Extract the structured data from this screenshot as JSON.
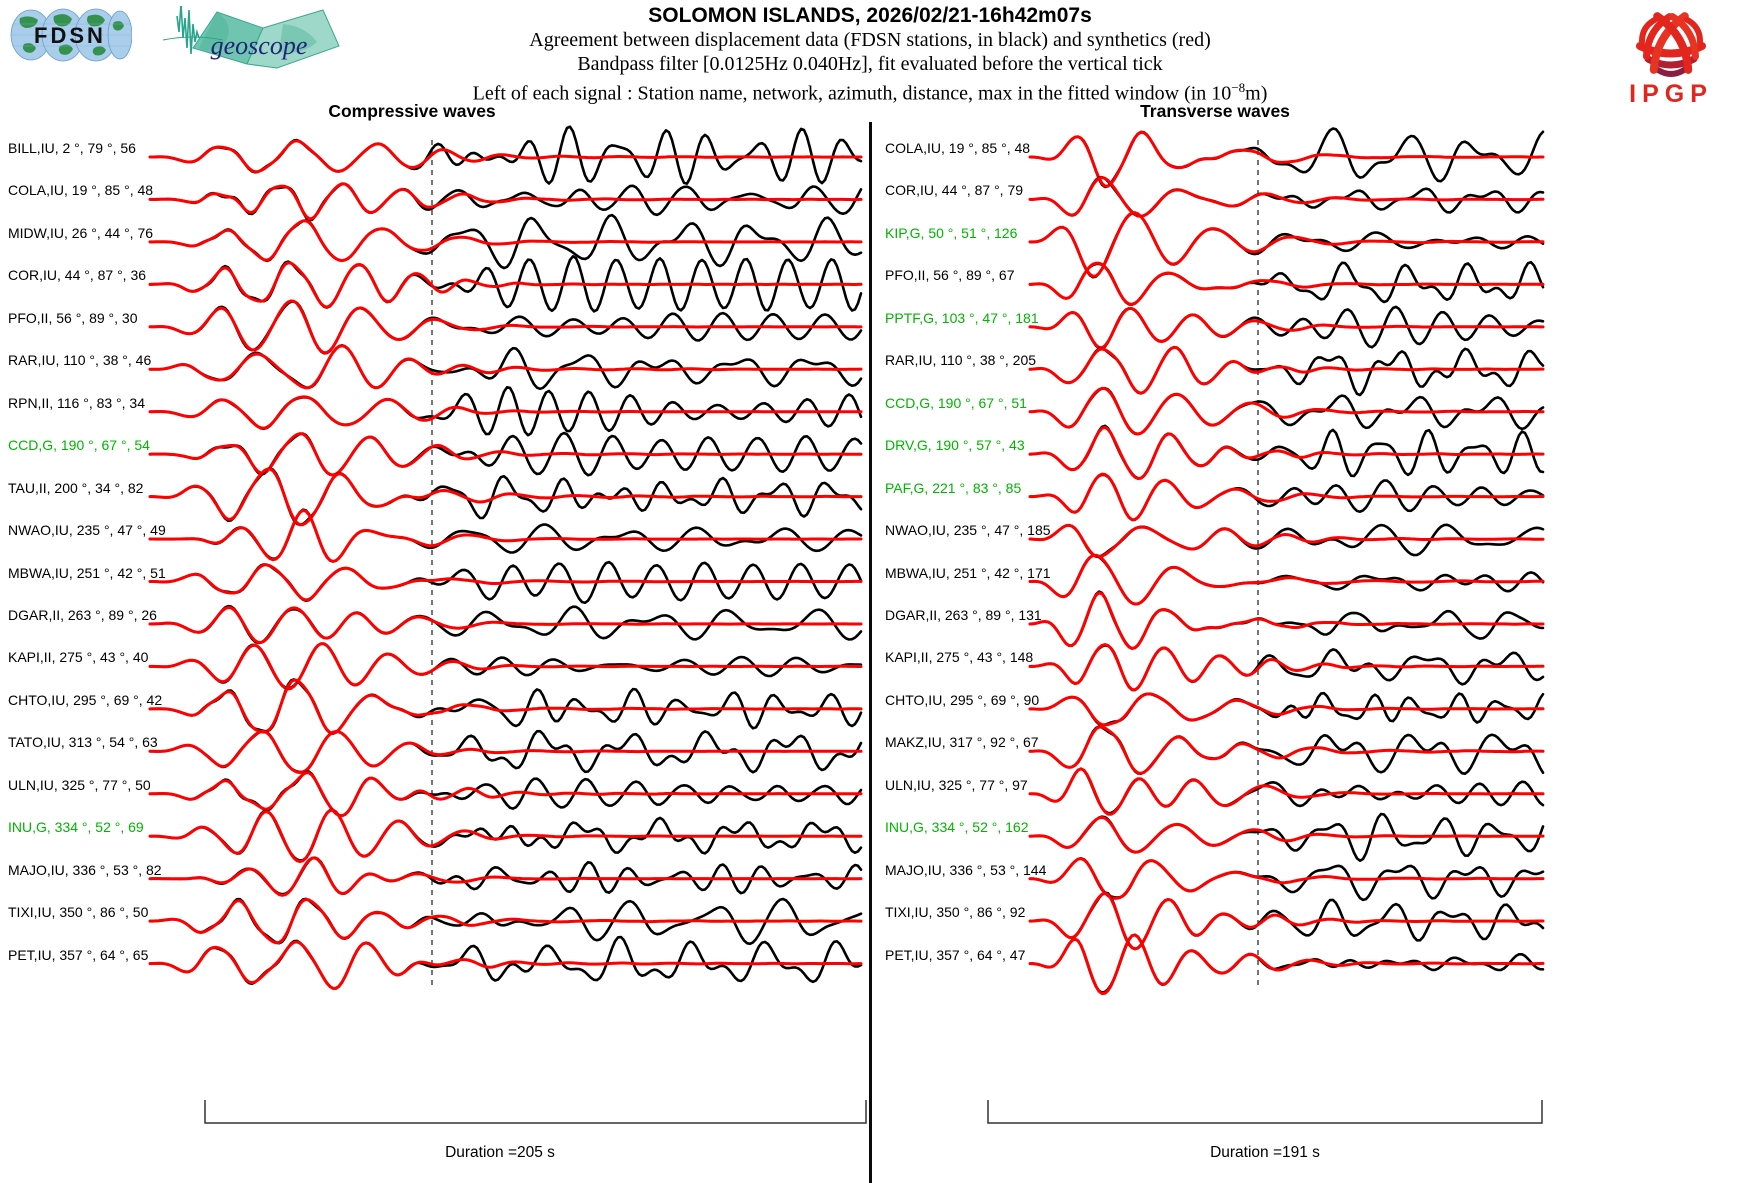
{
  "header": {
    "title": "SOLOMON ISLANDS, 2026/02/21-16h42m07s",
    "subtitle1": "Agreement between displacement data (FDSN stations, in black) and synthetics (red)",
    "subtitle2": "Bandpass filter [0.0125Hz 0.040Hz], fit evaluated before the vertical tick",
    "subtitle3_prefix": "Left of each signal : Station name, network, azimuth, distance, max in the fitted window (in 10",
    "subtitle3_sup": "−8",
    "subtitle3_suffix": "m)",
    "logos": {
      "fdsn": "FDSN",
      "geoscope": "geoscope",
      "ipgp": "IPGP"
    }
  },
  "colors": {
    "trace_data": "#000000",
    "trace_synthetic": "#ff0000",
    "green_station": "#00b400",
    "divider": "#0a0a0a"
  },
  "chart_data": {
    "type": "line",
    "description": "Seismogram comparison figure: observed displacement waveforms (black) overlaid with synthetic waveforms (red) for compressive (P) and transverse (S) waves. Each row label gives station, network, azimuth (deg), distance (deg), and max amplitude in the fitted window (1e-8 m). A dashed vertical tick marks the end of the fit window.",
    "waveforms_procedural": true,
    "panels": [
      {
        "title": "Compressive waves",
        "duration_label": "Duration =205 s",
        "duration_s": 205,
        "stations": [
          {
            "station": "BILL",
            "network": "IU",
            "azimuth_deg": 2,
            "distance_deg": 79,
            "max_1e8m": 56,
            "green": false
          },
          {
            "station": "COLA",
            "network": "IU",
            "azimuth_deg": 19,
            "distance_deg": 85,
            "max_1e8m": 48,
            "green": false
          },
          {
            "station": "MIDW",
            "network": "IU",
            "azimuth_deg": 26,
            "distance_deg": 44,
            "max_1e8m": 76,
            "green": false
          },
          {
            "station": "COR",
            "network": "IU",
            "azimuth_deg": 44,
            "distance_deg": 87,
            "max_1e8m": 36,
            "green": false
          },
          {
            "station": "PFO",
            "network": "II",
            "azimuth_deg": 56,
            "distance_deg": 89,
            "max_1e8m": 30,
            "green": false
          },
          {
            "station": "RAR",
            "network": "IU",
            "azimuth_deg": 110,
            "distance_deg": 38,
            "max_1e8m": 46,
            "green": false
          },
          {
            "station": "RPN",
            "network": "II",
            "azimuth_deg": 116,
            "distance_deg": 83,
            "max_1e8m": 34,
            "green": false
          },
          {
            "station": "CCD",
            "network": "G",
            "azimuth_deg": 190,
            "distance_deg": 67,
            "max_1e8m": 54,
            "green": true
          },
          {
            "station": "TAU",
            "network": "II",
            "azimuth_deg": 200,
            "distance_deg": 34,
            "max_1e8m": 82,
            "green": false
          },
          {
            "station": "NWAO",
            "network": "IU",
            "azimuth_deg": 235,
            "distance_deg": 47,
            "max_1e8m": 49,
            "green": false
          },
          {
            "station": "MBWA",
            "network": "IU",
            "azimuth_deg": 251,
            "distance_deg": 42,
            "max_1e8m": 51,
            "green": false
          },
          {
            "station": "DGAR",
            "network": "II",
            "azimuth_deg": 263,
            "distance_deg": 89,
            "max_1e8m": 26,
            "green": false
          },
          {
            "station": "KAPI",
            "network": "II",
            "azimuth_deg": 275,
            "distance_deg": 43,
            "max_1e8m": 40,
            "green": false
          },
          {
            "station": "CHTO",
            "network": "IU",
            "azimuth_deg": 295,
            "distance_deg": 69,
            "max_1e8m": 42,
            "green": false
          },
          {
            "station": "TATO",
            "network": "IU",
            "azimuth_deg": 313,
            "distance_deg": 54,
            "max_1e8m": 63,
            "green": false
          },
          {
            "station": "ULN",
            "network": "IU",
            "azimuth_deg": 325,
            "distance_deg": 77,
            "max_1e8m": 50,
            "green": false
          },
          {
            "station": "INU",
            "network": "G",
            "azimuth_deg": 334,
            "distance_deg": 52,
            "max_1e8m": 69,
            "green": true
          },
          {
            "station": "MAJO",
            "network": "IU",
            "azimuth_deg": 336,
            "distance_deg": 53,
            "max_1e8m": 82,
            "green": false
          },
          {
            "station": "TIXI",
            "network": "IU",
            "azimuth_deg": 350,
            "distance_deg": 86,
            "max_1e8m": 50,
            "green": false
          },
          {
            "station": "PET",
            "network": "IU",
            "azimuth_deg": 357,
            "distance_deg": 64,
            "max_1e8m": 65,
            "green": false
          }
        ]
      },
      {
        "title": "Transverse waves",
        "duration_label": "Duration =191 s",
        "duration_s": 191,
        "stations": [
          {
            "station": "COLA",
            "network": "IU",
            "azimuth_deg": 19,
            "distance_deg": 85,
            "max_1e8m": 48,
            "green": false
          },
          {
            "station": "COR",
            "network": "IU",
            "azimuth_deg": 44,
            "distance_deg": 87,
            "max_1e8m": 79,
            "green": false
          },
          {
            "station": "KIP",
            "network": "G",
            "azimuth_deg": 50,
            "distance_deg": 51,
            "max_1e8m": 126,
            "green": true
          },
          {
            "station": "PFO",
            "network": "II",
            "azimuth_deg": 56,
            "distance_deg": 89,
            "max_1e8m": 67,
            "green": false
          },
          {
            "station": "PPTF",
            "network": "G",
            "azimuth_deg": 103,
            "distance_deg": 47,
            "max_1e8m": 181,
            "green": true
          },
          {
            "station": "RAR",
            "network": "IU",
            "azimuth_deg": 110,
            "distance_deg": 38,
            "max_1e8m": 205,
            "green": false
          },
          {
            "station": "CCD",
            "network": "G",
            "azimuth_deg": 190,
            "distance_deg": 67,
            "max_1e8m": 51,
            "green": true
          },
          {
            "station": "DRV",
            "network": "G",
            "azimuth_deg": 190,
            "distance_deg": 57,
            "max_1e8m": 43,
            "green": true
          },
          {
            "station": "PAF",
            "network": "G",
            "azimuth_deg": 221,
            "distance_deg": 83,
            "max_1e8m": 85,
            "green": true
          },
          {
            "station": "NWAO",
            "network": "IU",
            "azimuth_deg": 235,
            "distance_deg": 47,
            "max_1e8m": 185,
            "green": false
          },
          {
            "station": "MBWA",
            "network": "IU",
            "azimuth_deg": 251,
            "distance_deg": 42,
            "max_1e8m": 171,
            "green": false
          },
          {
            "station": "DGAR",
            "network": "II",
            "azimuth_deg": 263,
            "distance_deg": 89,
            "max_1e8m": 131,
            "green": false
          },
          {
            "station": "KAPI",
            "network": "II",
            "azimuth_deg": 275,
            "distance_deg": 43,
            "max_1e8m": 148,
            "green": false
          },
          {
            "station": "CHTO",
            "network": "IU",
            "azimuth_deg": 295,
            "distance_deg": 69,
            "max_1e8m": 90,
            "green": false
          },
          {
            "station": "MAKZ",
            "network": "IU",
            "azimuth_deg": 317,
            "distance_deg": 92,
            "max_1e8m": 67,
            "green": false
          },
          {
            "station": "ULN",
            "network": "IU",
            "azimuth_deg": 325,
            "distance_deg": 77,
            "max_1e8m": 97,
            "green": false
          },
          {
            "station": "INU",
            "network": "G",
            "azimuth_deg": 334,
            "distance_deg": 52,
            "max_1e8m": 162,
            "green": true
          },
          {
            "station": "MAJO",
            "network": "IU",
            "azimuth_deg": 336,
            "distance_deg": 53,
            "max_1e8m": 144,
            "green": false
          },
          {
            "station": "TIXI",
            "network": "IU",
            "azimuth_deg": 350,
            "distance_deg": 86,
            "max_1e8m": 92,
            "green": false
          },
          {
            "station": "PET",
            "network": "IU",
            "azimuth_deg": 357,
            "distance_deg": 64,
            "max_1e8m": 47,
            "green": false
          }
        ]
      }
    ]
  }
}
